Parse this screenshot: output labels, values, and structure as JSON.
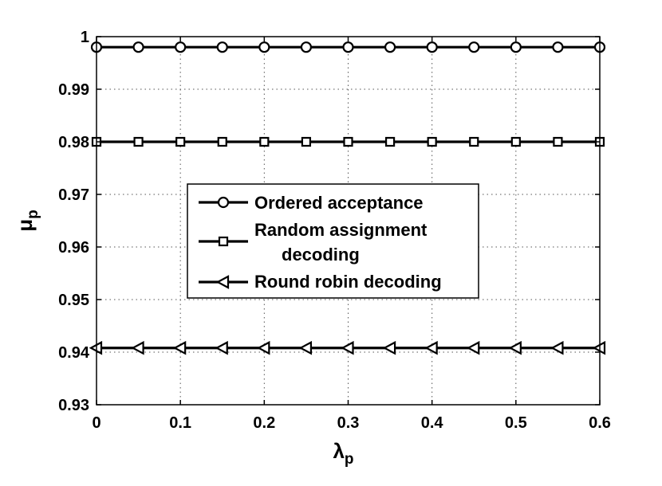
{
  "chart_data": {
    "type": "line",
    "title": "",
    "xlabel": {
      "symbol": "λ",
      "subscript": "p"
    },
    "ylabel": {
      "symbol": "μ",
      "subscript": "p"
    },
    "xlim": [
      0,
      0.6
    ],
    "ylim": [
      0.93,
      1.0
    ],
    "xticks": [
      0,
      0.1,
      0.2,
      0.3,
      0.4,
      0.5,
      0.6
    ],
    "xtick_labels": [
      "0",
      "0.1",
      "0.2",
      "0.3",
      "0.4",
      "0.5",
      "0.6"
    ],
    "yticks": [
      0.93,
      0.94,
      0.95,
      0.96,
      0.97,
      0.98,
      0.99,
      1.0
    ],
    "ytick_labels": [
      "0.93",
      "0.94",
      "0.95",
      "0.96",
      "0.97",
      "0.98",
      "0.99",
      "1"
    ],
    "grid": true,
    "legend_position": "center-left",
    "x": [
      0,
      0.05,
      0.1,
      0.15,
      0.2,
      0.25,
      0.3,
      0.35,
      0.4,
      0.45,
      0.5,
      0.55,
      0.6
    ],
    "series": [
      {
        "name": "Ordered acceptance",
        "marker": "circle",
        "color": "#000000",
        "values": [
          0.998,
          0.998,
          0.998,
          0.998,
          0.998,
          0.998,
          0.998,
          0.998,
          0.998,
          0.998,
          0.998,
          0.998,
          0.998
        ]
      },
      {
        "name": "Random assignment decoding",
        "name_lines": [
          "Random assignment",
          "decoding"
        ],
        "marker": "square",
        "color": "#000000",
        "values": [
          0.98,
          0.98,
          0.98,
          0.98,
          0.98,
          0.98,
          0.98,
          0.98,
          0.98,
          0.98,
          0.98,
          0.98,
          0.98
        ]
      },
      {
        "name": "Round robin decoding",
        "marker": "triangle-left",
        "color": "#000000",
        "values": [
          0.9408,
          0.9408,
          0.9408,
          0.9408,
          0.9408,
          0.9408,
          0.9408,
          0.9408,
          0.9408,
          0.9408,
          0.9408,
          0.9408,
          0.9408
        ]
      }
    ]
  }
}
